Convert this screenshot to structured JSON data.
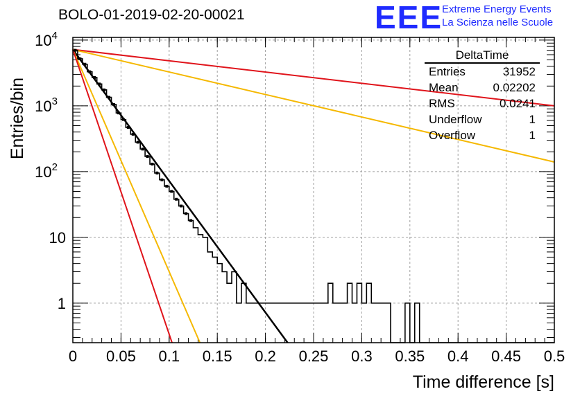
{
  "header": {
    "run_title": "BOLO-01-2019-02-20-00021",
    "logo_mark": "EEE",
    "logo_line1": "Extreme Energy Events",
    "logo_line2": "La Scienza nelle Scuole"
  },
  "stats_box": {
    "title": "DeltaTime",
    "rows": [
      {
        "label": "Entries",
        "value": "31952"
      },
      {
        "label": "Mean",
        "value": "0.02202"
      },
      {
        "label": "RMS",
        "value": "0.0241"
      },
      {
        "label": "Underflow",
        "value": "1"
      },
      {
        "label": "Overflow",
        "value": "1"
      }
    ]
  },
  "colors": {
    "histogram": "#000000",
    "fit": "#000000",
    "red": "#e0141b",
    "yellow": "#f5b800",
    "grid": "#a0a0a0"
  },
  "chart_data": {
    "type": "line",
    "title": "BOLO-01-2019-02-20-00021",
    "xlabel": "Time difference [s]",
    "ylabel": "Entries/bin",
    "xlim": [
      0,
      0.5
    ],
    "ylim": [
      0.25,
      11000
    ],
    "yscale": "log",
    "grid": true,
    "x_ticks": [
      "0",
      "0.05",
      "0.1",
      "0.15",
      "0.2",
      "0.25",
      "0.3",
      "0.35",
      "0.4",
      "0.45",
      "0.5"
    ],
    "y_ticks": [
      {
        "base": "10",
        "exp": "4",
        "value": 10000
      },
      {
        "base": "10",
        "exp": "3",
        "value": 1000
      },
      {
        "base": "10",
        "exp": "2",
        "value": 100
      },
      {
        "base": "10",
        "exp": "",
        "value": 10
      },
      {
        "base": "1",
        "exp": "",
        "value": 1
      }
    ],
    "histogram": {
      "bin_width": 0.005,
      "counts": [
        7000,
        5200,
        4300,
        3300,
        2700,
        2150,
        1750,
        1350,
        1050,
        780,
        620,
        470,
        370,
        280,
        220,
        170,
        130,
        95,
        75,
        60,
        50,
        38,
        30,
        23,
        18,
        14,
        11,
        10,
        6,
        5,
        4,
        3,
        2,
        3,
        1,
        2,
        1,
        1,
        1,
        1,
        1,
        1,
        1,
        1,
        1,
        1,
        1,
        1,
        1,
        1,
        1,
        1,
        1,
        2,
        1,
        1,
        1,
        2,
        1,
        2,
        1,
        2,
        1,
        1,
        1,
        1,
        0,
        0,
        0,
        1,
        0,
        1,
        0,
        0,
        0,
        0,
        0,
        0,
        0,
        0,
        0,
        0,
        0,
        0,
        0,
        0,
        0,
        0,
        0,
        0,
        0,
        0,
        0,
        0,
        0,
        0,
        0,
        0,
        0,
        0
      ]
    },
    "series": [
      {
        "color": "black",
        "start": [
          0,
          7200
        ],
        "end": [
          0.223,
          0.25
        ]
      },
      {
        "color": "red",
        "start": [
          0,
          7200
        ],
        "end": [
          0.5,
          1000
        ]
      },
      {
        "color": "yellow",
        "start": [
          0,
          7200
        ],
        "end": [
          0.5,
          140
        ]
      },
      {
        "color": "yellow",
        "start": [
          0,
          7200
        ],
        "end": [
          0.132,
          0.25
        ]
      },
      {
        "color": "red",
        "start": [
          0,
          7200
        ],
        "end": [
          0.103,
          0.25
        ]
      }
    ]
  }
}
